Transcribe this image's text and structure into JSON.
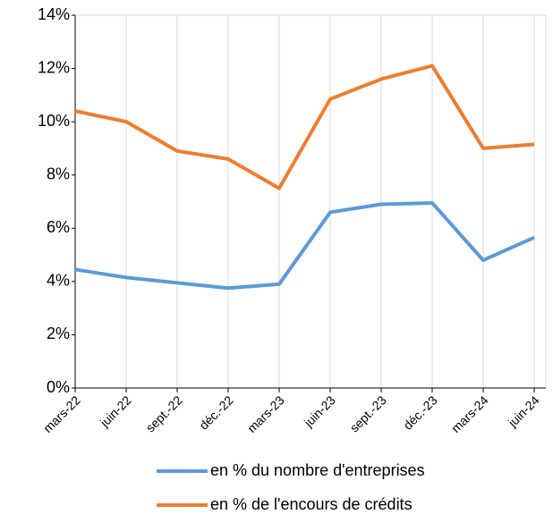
{
  "chart_data": {
    "type": "line",
    "categories": [
      "mars-22",
      "juin-22",
      "sept.-22",
      "déc.-22",
      "mars-23",
      "juin-23",
      "sept.-23",
      "déc.-23",
      "mars-24",
      "juin-24"
    ],
    "series": [
      {
        "name": "en % du nombre d'entreprises",
        "color": "#5b9bd5",
        "values": [
          4.45,
          4.15,
          3.95,
          3.75,
          3.9,
          6.6,
          6.9,
          6.95,
          4.8,
          5.65
        ]
      },
      {
        "name": "en % de l'encours de crédits",
        "color": "#ed7d31",
        "values": [
          10.4,
          10.0,
          8.9,
          8.6,
          7.5,
          10.85,
          11.6,
          12.1,
          9.0,
          9.15
        ]
      }
    ],
    "ylim": [
      0,
      14
    ],
    "yticks": [
      {
        "value": 0,
        "label": "0%"
      },
      {
        "value": 2,
        "label": "2%"
      },
      {
        "value": 4,
        "label": "4%"
      },
      {
        "value": 6,
        "label": "6%"
      },
      {
        "value": 8,
        "label": "8%"
      },
      {
        "value": 10,
        "label": "10%"
      },
      {
        "value": 12,
        "label": "12%"
      },
      {
        "value": 14,
        "label": "14%"
      }
    ],
    "grid": "x"
  }
}
